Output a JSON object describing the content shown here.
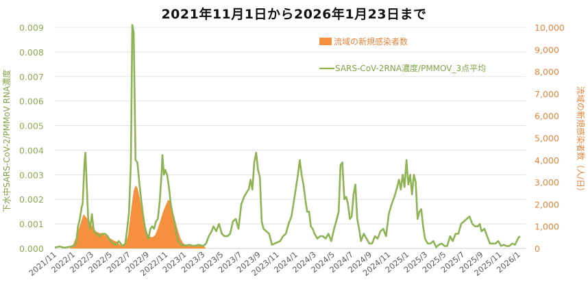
{
  "title": "2021年11月1日から2026年1月23日まで",
  "chart_data": {
    "type": "bar+line",
    "title": "2021年11月1日から2026年1月23日まで",
    "x_start": "2021/11/1",
    "x_end": "2026/1/23",
    "xlabel": "",
    "x_ticks": [
      "2021/11",
      "2022/1",
      "2022/3",
      "2022/5",
      "2022/7",
      "2022/9",
      "2022/11",
      "2023/1",
      "2023/3",
      "2023/5",
      "2023/7",
      "2023/9",
      "2023/11",
      "2024/1",
      "2024/3",
      "2024/5",
      "2024/7",
      "2024/9",
      "2024/11",
      "2025/1",
      "2025/3",
      "2025/5",
      "2025/7",
      "2025/9",
      "2025/11",
      "2026/1"
    ],
    "y_left": {
      "label": "下水中SARS-CoV-2/PMMoV RNA濃度",
      "ticks": [
        "0.000",
        "0.001",
        "0.002",
        "0.003",
        "0.004",
        "0.005",
        "0.006",
        "0.007",
        "0.008",
        "0.009"
      ],
      "range": [
        0,
        0.009
      ],
      "color": "#8aab4f"
    },
    "y_right": {
      "label": "流域の新規感染者数（人/日）",
      "ticks": [
        "0",
        "1,000",
        "2,000",
        "3,000",
        "4,000",
        "5,000",
        "6,000",
        "7,000",
        "8,000",
        "9,000",
        "10,000"
      ],
      "range": [
        0,
        10000
      ],
      "color": "#e8833a"
    },
    "grid": true,
    "legend_position": "upper-right-inside",
    "series": [
      {
        "name": "流域の新規感染者数",
        "type": "area-bar",
        "axis": "right",
        "color": "#f5913e",
        "x_unit": "months since 2021/11/1",
        "points": [
          [
            0,
            0
          ],
          [
            1.6,
            0
          ],
          [
            2.0,
            200
          ],
          [
            2.3,
            500
          ],
          [
            2.6,
            900
          ],
          [
            2.9,
            1300
          ],
          [
            3.1,
            1550
          ],
          [
            3.3,
            1450
          ],
          [
            3.6,
            1300
          ],
          [
            3.9,
            1100
          ],
          [
            4.2,
            900
          ],
          [
            4.5,
            750
          ],
          [
            4.8,
            700
          ],
          [
            5.2,
            650
          ],
          [
            5.6,
            550
          ],
          [
            6.0,
            450
          ],
          [
            6.4,
            350
          ],
          [
            6.7,
            300
          ],
          [
            7.0,
            180
          ],
          [
            7.3,
            100
          ],
          [
            7.6,
            180
          ],
          [
            7.9,
            600
          ],
          [
            8.1,
            1300
          ],
          [
            8.3,
            2000
          ],
          [
            8.5,
            2600
          ],
          [
            8.7,
            2850
          ],
          [
            8.9,
            2750
          ],
          [
            9.1,
            2400
          ],
          [
            9.3,
            1900
          ],
          [
            9.5,
            1400
          ],
          [
            9.7,
            1000
          ],
          [
            9.9,
            700
          ],
          [
            10.2,
            550
          ],
          [
            10.5,
            500
          ],
          [
            10.8,
            600
          ],
          [
            11.1,
            900
          ],
          [
            11.4,
            1300
          ],
          [
            11.7,
            1700
          ],
          [
            12.0,
            2000
          ],
          [
            12.2,
            2200
          ],
          [
            12.4,
            2150
          ],
          [
            12.6,
            1900
          ],
          [
            12.9,
            1400
          ],
          [
            13.2,
            900
          ],
          [
            13.5,
            500
          ],
          [
            13.8,
            250
          ],
          [
            14.1,
            150
          ],
          [
            14.5,
            130
          ],
          [
            15.0,
            140
          ],
          [
            15.6,
            130
          ],
          [
            16.0,
            150
          ],
          [
            16.3,
            0
          ]
        ]
      },
      {
        "name": "SARS-CoV-2RNA濃度/PMMOV_3点平均",
        "type": "line",
        "axis": "left",
        "color": "#8db352",
        "x_unit": "months since 2021/11/1",
        "points": [
          [
            0,
            4e-05
          ],
          [
            0.5,
            8e-05
          ],
          [
            1.0,
            3e-05
          ],
          [
            1.5,
            6e-05
          ],
          [
            2.0,
            0.0001
          ],
          [
            2.3,
            0.0002
          ],
          [
            2.5,
            0.0009
          ],
          [
            2.7,
            0.0012
          ],
          [
            2.9,
            0.0017
          ],
          [
            3.0,
            0.0018
          ],
          [
            3.2,
            0.0035
          ],
          [
            3.3,
            0.0039
          ],
          [
            3.45,
            0.0025
          ],
          [
            3.6,
            0.0012
          ],
          [
            3.8,
            0.0008
          ],
          [
            4.0,
            0.0014
          ],
          [
            4.2,
            0.0007
          ],
          [
            4.5,
            0.0006
          ],
          [
            4.8,
            0.0005
          ],
          [
            5.1,
            0.0006
          ],
          [
            5.4,
            0.0006
          ],
          [
            5.7,
            0.0005
          ],
          [
            6.0,
            0.0003
          ],
          [
            6.3,
            0.0002
          ],
          [
            6.6,
            0.00015
          ],
          [
            6.9,
            0.0003
          ],
          [
            7.1,
            0.0002
          ],
          [
            7.3,
            0.0001
          ],
          [
            7.6,
            0.0002
          ],
          [
            7.8,
            0.0008
          ],
          [
            8.0,
            0.0015
          ],
          [
            8.2,
            0.0035
          ],
          [
            8.35,
            0.0091
          ],
          [
            8.5,
            0.0088
          ],
          [
            8.7,
            0.0036
          ],
          [
            8.9,
            0.0035
          ],
          [
            9.1,
            0.0027
          ],
          [
            9.3,
            0.002
          ],
          [
            9.5,
            0.0014
          ],
          [
            9.7,
            0.0009
          ],
          [
            9.9,
            0.0006
          ],
          [
            10.1,
            0.0004
          ],
          [
            10.3,
            0.0008
          ],
          [
            10.5,
            0.0009
          ],
          [
            10.7,
            0.0008
          ],
          [
            10.9,
            0.0011
          ],
          [
            11.1,
            0.0012
          ],
          [
            11.3,
            0.0019
          ],
          [
            11.5,
            0.003
          ],
          [
            11.6,
            0.0038
          ],
          [
            11.75,
            0.003
          ],
          [
            11.9,
            0.0032
          ],
          [
            12.1,
            0.003
          ],
          [
            12.3,
            0.0025
          ],
          [
            12.5,
            0.0018
          ],
          [
            12.7,
            0.0014
          ],
          [
            12.9,
            0.0011
          ],
          [
            13.1,
            0.0006
          ],
          [
            13.3,
            0.0003
          ],
          [
            13.6,
            0.00015
          ],
          [
            14.0,
            0.00012
          ],
          [
            14.5,
            0.00015
          ],
          [
            15.0,
            0.0001
          ],
          [
            15.5,
            0.00015
          ],
          [
            16.0,
            0.0001
          ],
          [
            16.3,
            0.0002
          ],
          [
            16.6,
            0.0005
          ],
          [
            16.9,
            0.0007
          ],
          [
            17.1,
            0.0009
          ],
          [
            17.4,
            0.0007
          ],
          [
            17.7,
            0.001
          ],
          [
            18.0,
            0.0006
          ],
          [
            18.3,
            0.0005
          ],
          [
            18.6,
            0.0005
          ],
          [
            18.9,
            0.0006
          ],
          [
            19.2,
            0.0011
          ],
          [
            19.5,
            0.0012
          ],
          [
            19.8,
            0.0008
          ],
          [
            20.1,
            0.0018
          ],
          [
            20.4,
            0.0021
          ],
          [
            20.7,
            0.0023
          ],
          [
            20.9,
            0.0024
          ],
          [
            21.1,
            0.0028
          ],
          [
            21.3,
            0.0024
          ],
          [
            21.5,
            0.0035
          ],
          [
            21.7,
            0.0039
          ],
          [
            21.9,
            0.0032
          ],
          [
            22.1,
            0.0029
          ],
          [
            22.3,
            0.0011
          ],
          [
            22.5,
            0.0008
          ],
          [
            22.8,
            0.0007
          ],
          [
            23.1,
            0.0006
          ],
          [
            23.4,
            0.00015
          ],
          [
            23.7,
            0.0002
          ],
          [
            24.0,
            0.00025
          ],
          [
            24.3,
            0.0003
          ],
          [
            24.6,
            0.0005
          ],
          [
            24.9,
            0.0006
          ],
          [
            25.2,
            0.001
          ],
          [
            25.5,
            0.0013
          ],
          [
            25.8,
            0.002
          ],
          [
            26.0,
            0.0025
          ],
          [
            26.2,
            0.003
          ],
          [
            26.4,
            0.0036
          ],
          [
            26.6,
            0.003
          ],
          [
            26.8,
            0.0026
          ],
          [
            27.0,
            0.002
          ],
          [
            27.2,
            0.0015
          ],
          [
            27.4,
            0.0015
          ],
          [
            27.6,
            0.0009
          ],
          [
            27.8,
            0.0008
          ],
          [
            28.0,
            0.0006
          ],
          [
            28.3,
            0.0004
          ],
          [
            28.6,
            0.0005
          ],
          [
            28.9,
            0.0005
          ],
          [
            29.2,
            0.0004
          ],
          [
            29.5,
            0.0006
          ],
          [
            29.8,
            0.0003
          ],
          [
            30.1,
            0.0008
          ],
          [
            30.4,
            0.0012
          ],
          [
            30.6,
            0.0015
          ],
          [
            30.8,
            0.0034
          ],
          [
            31.0,
            0.0035
          ],
          [
            31.2,
            0.002
          ],
          [
            31.4,
            0.0021
          ],
          [
            31.6,
            0.0018
          ],
          [
            31.8,
            0.0012
          ],
          [
            32.0,
            0.0013
          ],
          [
            32.2,
            0.0022
          ],
          [
            32.4,
            0.0026
          ],
          [
            32.6,
            0.0012
          ],
          [
            32.8,
            0.0008
          ],
          [
            33.0,
            0.0003
          ],
          [
            33.3,
            0.0006
          ],
          [
            33.6,
            0.0004
          ],
          [
            33.9,
            0.0002
          ],
          [
            34.2,
            0.0002
          ],
          [
            34.5,
            0.0005
          ],
          [
            34.8,
            0.0004
          ],
          [
            35.1,
            0.0007
          ],
          [
            35.4,
            0.0008
          ],
          [
            35.7,
            0.0005
          ],
          [
            36.0,
            0.0014
          ],
          [
            36.3,
            0.0018
          ],
          [
            36.6,
            0.0021
          ],
          [
            36.9,
            0.0025
          ],
          [
            37.1,
            0.0028
          ],
          [
            37.3,
            0.0024
          ],
          [
            37.5,
            0.003
          ],
          [
            37.7,
            0.0025
          ],
          [
            37.9,
            0.0036
          ],
          [
            38.1,
            0.0026
          ],
          [
            38.3,
            0.003
          ],
          [
            38.5,
            0.0022
          ],
          [
            38.7,
            0.003
          ],
          [
            38.9,
            0.0027
          ],
          [
            39.1,
            0.0012
          ],
          [
            39.3,
            0.0015
          ],
          [
            39.5,
            0.0016
          ],
          [
            39.7,
            0.0009
          ],
          [
            39.9,
            0.0004
          ],
          [
            40.2,
            0.0002
          ],
          [
            40.5,
            0.0002
          ],
          [
            40.8,
            0.0003
          ],
          [
            41.1,
            5e-05
          ],
          [
            41.4,
            0.00015
          ],
          [
            41.7,
            0.0002
          ],
          [
            42.0,
            0.0001
          ],
          [
            42.3,
            0.0001
          ],
          [
            42.6,
            0.0005
          ],
          [
            42.9,
            0.0003
          ],
          [
            43.2,
            0.0006
          ],
          [
            43.5,
            0.0006
          ],
          [
            43.8,
            0.001
          ],
          [
            44.1,
            0.0011
          ],
          [
            44.4,
            0.0012
          ],
          [
            44.7,
            0.0013
          ],
          [
            45.0,
            0.001
          ],
          [
            45.3,
            0.0009
          ],
          [
            45.6,
            0.0009
          ],
          [
            45.8,
            0.001
          ],
          [
            46.0,
            0.0007
          ],
          [
            46.3,
            0.0008
          ],
          [
            46.6,
            0.0005
          ],
          [
            46.9,
            0.0002
          ],
          [
            47.2,
            0.0002
          ],
          [
            47.5,
            0.0002
          ],
          [
            47.8,
            0.0003
          ],
          [
            48.1,
            0.0001
          ],
          [
            48.4,
            0.00015
          ],
          [
            48.7,
            0.0001
          ],
          [
            49.0,
            0.0001
          ],
          [
            49.3,
            0.0002
          ],
          [
            49.6,
            0.00015
          ],
          [
            49.8,
            0.0003
          ],
          [
            50.0,
            0.00045
          ],
          [
            50.15,
            0.0005
          ]
        ]
      }
    ]
  },
  "legend": {
    "bar_label": "流域の新規感染者数",
    "line_label": "SARS-CoV-2RNA濃度/PMMOV_3点平均"
  }
}
